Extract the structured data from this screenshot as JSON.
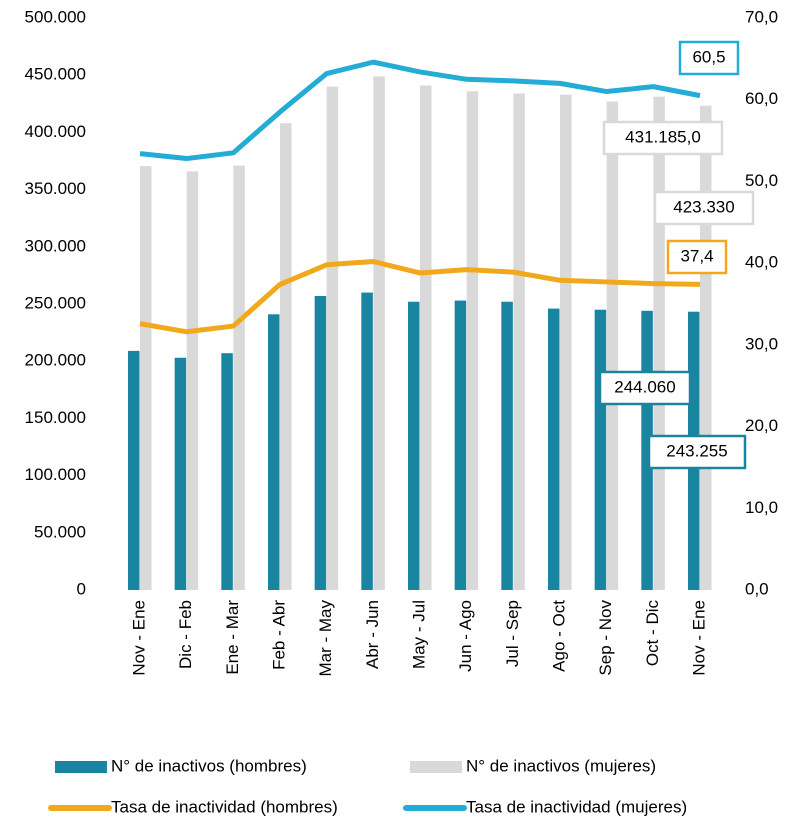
{
  "chart_data": {
    "type": "bar",
    "categories": [
      "Nov - Ene",
      "Dic - Feb",
      "Ene - Mar",
      "Feb - Abr",
      "Mar - May",
      "Abr - Jun",
      "May - Jul",
      "Jun - Ago",
      "Jul - Sep",
      "Ago - Oct",
      "Sep - Nov",
      "Oct - Dic",
      "Nov - Ene"
    ],
    "series": [
      {
        "name": "N° de inactivos (hombres)",
        "type": "bar",
        "color": "#1a85a0",
        "values": [
          209000,
          203000,
          207000,
          241000,
          257000,
          260000,
          252000,
          253000,
          252000,
          246000,
          245000,
          244060,
          243255
        ],
        "value_labels": [
          null,
          null,
          null,
          null,
          null,
          null,
          null,
          null,
          null,
          null,
          null,
          "244.060",
          "243.255"
        ]
      },
      {
        "name": "N° de inactivos (mujeres)",
        "type": "bar",
        "color": "#d9d9d9",
        "values": [
          370500,
          366000,
          371000,
          408000,
          440000,
          449000,
          441000,
          436000,
          434000,
          433000,
          427000,
          431185,
          423330
        ],
        "value_labels": [
          null,
          null,
          null,
          null,
          null,
          null,
          null,
          null,
          null,
          null,
          null,
          "431.185,0",
          "423.330"
        ]
      },
      {
        "name": "Tasa de inactividad (hombres)",
        "type": "line",
        "axis": "y2",
        "color": "#f2a81d",
        "values": [
          32.6,
          31.6,
          32.3,
          37.4,
          39.8,
          40.2,
          38.8,
          39.2,
          38.9,
          37.9,
          37.7,
          37.5,
          37.4
        ],
        "value_labels": [
          null,
          null,
          null,
          null,
          null,
          null,
          null,
          null,
          null,
          null,
          null,
          null,
          "37,4"
        ]
      },
      {
        "name": "Tasa de inactividad (mujeres)",
        "type": "line",
        "axis": "y2",
        "color": "#22acd6",
        "values": [
          53.4,
          52.8,
          53.5,
          58.5,
          63.2,
          64.6,
          63.4,
          62.5,
          62.3,
          62.0,
          61.0,
          61.6,
          60.5
        ],
        "value_labels": [
          null,
          null,
          null,
          null,
          null,
          null,
          null,
          null,
          null,
          null,
          null,
          null,
          "60,5"
        ]
      }
    ],
    "ylim": [
      0,
      500000
    ],
    "yticks": [
      0,
      {
        "value": 50000,
        "label": "50.000"
      },
      {
        "value": 100000,
        "label": "100.000"
      },
      {
        "value": 150000,
        "label": "150.000"
      },
      {
        "value": 200000,
        "label": "200.000"
      },
      {
        "value": 250000,
        "label": "250.000"
      },
      {
        "value": 300000,
        "label": "300.000"
      },
      {
        "value": 350000,
        "label": "350.000"
      },
      {
        "value": 400000,
        "label": "400.000"
      },
      {
        "value": 450000,
        "label": "450.000"
      },
      {
        "value": 500000,
        "label": "500.000"
      }
    ],
    "y2lim": [
      0,
      70
    ],
    "y2ticks": [
      {
        "value": 0,
        "label": "0,0"
      },
      {
        "value": 10,
        "label": "10,0"
      },
      {
        "value": 20,
        "label": "20,0"
      },
      {
        "value": 30,
        "label": "30,0"
      },
      {
        "value": 40,
        "label": "40,0"
      },
      {
        "value": 50,
        "label": "50,0"
      },
      {
        "value": 60,
        "label": "60,0"
      },
      {
        "value": 70,
        "label": "70,0"
      }
    ],
    "grid": false,
    "legend": "bottom"
  }
}
